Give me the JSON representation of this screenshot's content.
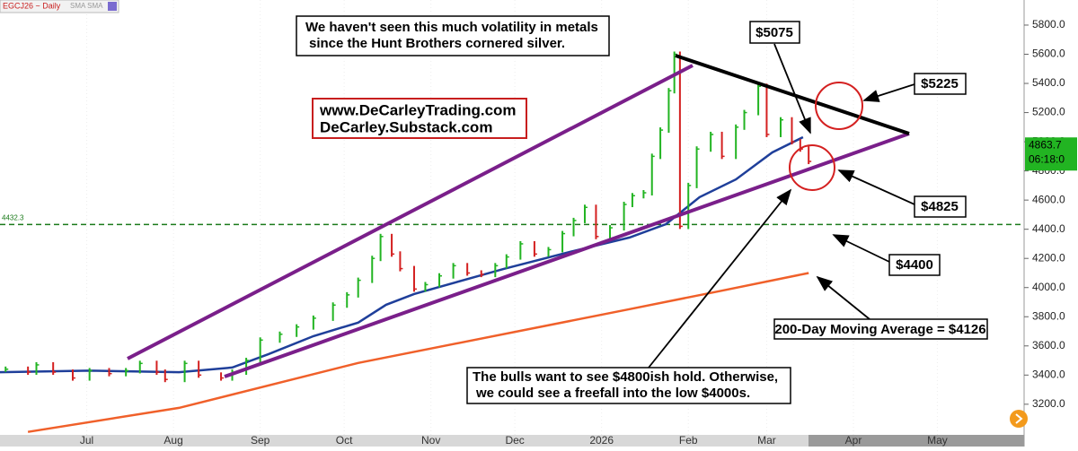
{
  "chart_data": {
    "type": "financial",
    "title": "EGCJ26 ~ Daily",
    "indicator_label": "SMA  SMA",
    "xlim": [
      -31,
      335
    ],
    "xticks": [
      {
        "value": 0,
        "label": "Jul"
      },
      {
        "value": 31,
        "label": "Aug"
      },
      {
        "value": 62,
        "label": "Sep"
      },
      {
        "value": 92,
        "label": "Oct"
      },
      {
        "value": 123,
        "label": "Nov"
      },
      {
        "value": 153,
        "label": "Dec"
      },
      {
        "value": 184,
        "label": "2026"
      },
      {
        "value": 215,
        "label": "Feb"
      },
      {
        "value": 243,
        "label": "Mar"
      },
      {
        "value": 274,
        "label": "Apr"
      },
      {
        "value": 304,
        "label": "May"
      }
    ],
    "ylim": [
      2990,
      5972
    ],
    "yticks": [
      {
        "value": 3200,
        "label": "3200.0"
      },
      {
        "value": 3400,
        "label": "3400.0"
      },
      {
        "value": 3600,
        "label": "3600.0"
      },
      {
        "value": 3800,
        "label": "3800.0"
      },
      {
        "value": 4000,
        "label": "4000.0"
      },
      {
        "value": 4200,
        "label": "4200.0"
      },
      {
        "value": 4400,
        "label": "4400.0"
      },
      {
        "value": 4600,
        "label": "4600.0"
      },
      {
        "value": 4800,
        "label": "4800.0"
      },
      {
        "value": 5000,
        "label": "5000.0"
      },
      {
        "value": 5200,
        "label": "5200.0"
      },
      {
        "value": 5400,
        "label": "5400.0"
      },
      {
        "value": 5600,
        "label": "5600.0"
      },
      {
        "value": 5800,
        "label": "5800.0"
      }
    ],
    "price": {
      "up_color": "#22b422",
      "down_color": "#d42020",
      "x": [
        -29,
        -21,
        -18,
        -12,
        -5,
        1,
        8,
        14,
        19,
        25,
        28,
        35,
        40,
        48,
        52,
        57,
        62,
        69,
        75,
        81,
        88,
        93,
        97,
        102,
        105,
        109,
        112,
        117,
        121,
        126,
        131,
        136,
        141,
        146,
        150,
        155,
        160,
        165,
        170,
        174,
        178,
        182,
        187,
        192,
        195,
        199,
        202,
        205,
        208,
        210,
        212,
        215,
        218,
        223,
        227,
        232,
        235,
        240,
        243,
        248,
        252,
        255,
        258
      ],
      "values": [
        3440,
        3420,
        3470,
        3420,
        3380,
        3430,
        3410,
        3430,
        3480,
        3420,
        3370,
        3480,
        3400,
        3380,
        3420,
        3500,
        3640,
        3680,
        3730,
        3790,
        3880,
        3950,
        4050,
        4200,
        4350,
        4230,
        4130,
        3990,
        4020,
        4080,
        4150,
        4100,
        4090,
        4150,
        4210,
        4300,
        4230,
        4260,
        4370,
        4460,
        4550,
        4350,
        4410,
        4570,
        4630,
        4650,
        4900,
        5080,
        5350,
        5600,
        4420,
        4700,
        4950,
        5050,
        4900,
        5100,
        5200,
        5380,
        5050,
        5150,
        5000,
        4950,
        4865
      ]
    },
    "moving_averages": [
      {
        "color": "#1f3f9a",
        "x": [
          -31,
          1,
          33,
          52,
          65,
          81,
          97,
          107,
          117,
          149,
          174,
          194,
          207,
          219,
          232,
          245,
          256
        ],
        "values": [
          3420,
          3430,
          3420,
          3452,
          3544,
          3667,
          3760,
          3882,
          3956,
          4128,
          4251,
          4343,
          4435,
          4620,
          4742,
          4927,
          5031
        ]
      },
      {
        "color": "#f0602a",
        "x": [
          -21,
          33,
          97,
          162,
          194,
          226,
          258
        ],
        "values": [
          3010,
          3175,
          3483,
          3730,
          3852,
          3975,
          4100
        ]
      }
    ],
    "reference_line": {
      "value": 4432.3,
      "color": "#1a7a1a"
    },
    "last_price": {
      "value": 4863.7,
      "timer": "06:18:0",
      "color": "#22b422"
    },
    "annotations": {
      "volatility": [
        "We haven't seen this much volatility in metals",
        "since the Hunt Brothers cornered silver."
      ],
      "website": [
        "www.DeCarleyTrading.com",
        "DeCarley.Substack.com"
      ],
      "level_5075": "$5075",
      "level_5225": "$5225",
      "level_4825": "$4825",
      "level_4400": "$4400",
      "moving_average": "200-Day Moving Average = $4126",
      "bulls": [
        "The bulls want to see $4800ish hold. Otherwise,",
        "we could see a freefall into the low $4000s."
      ]
    }
  }
}
